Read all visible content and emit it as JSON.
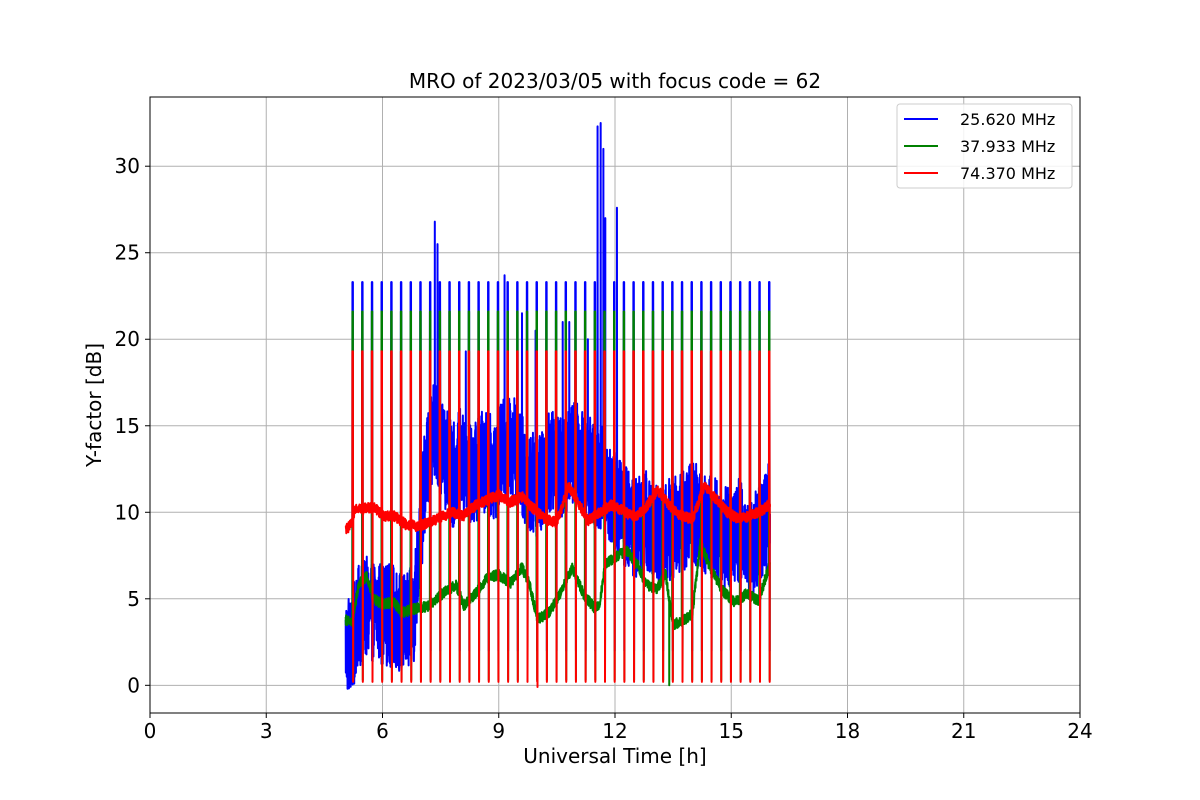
{
  "chart_data": {
    "type": "line",
    "title": "MRO of 2023/03/05 with focus code = 62",
    "xlabel": "Universal Time [h]",
    "ylabel": "Y-factor [dB]",
    "xlim": [
      0,
      24
    ],
    "ylim": [
      -1.6,
      34
    ],
    "xticks": [
      0,
      3,
      6,
      9,
      12,
      15,
      18,
      21,
      24
    ],
    "yticks": [
      0,
      5,
      10,
      15,
      20,
      25,
      30
    ],
    "grid": true,
    "legend_position": "top-right",
    "pulse": {
      "start_h": 5.23,
      "end_h": 16.0,
      "period_h": 0.25
    },
    "series": [
      {
        "name": "25.620 MHz",
        "color": "#0000ff",
        "pulse_top": 23.3,
        "pulse_bottom": 2.0,
        "baseline": [
          [
            5.05,
            2.5
          ],
          [
            5.2,
            2.3
          ],
          [
            5.3,
            3.5
          ],
          [
            5.5,
            4.5
          ],
          [
            5.8,
            4.3
          ],
          [
            6.0,
            4.2
          ],
          [
            6.3,
            4.0
          ],
          [
            6.6,
            3.5
          ],
          [
            6.8,
            4.0
          ],
          [
            6.95,
            8.0
          ],
          [
            7.1,
            12.0
          ],
          [
            7.3,
            15.0
          ],
          [
            7.5,
            14.0
          ],
          [
            7.8,
            12.0
          ],
          [
            8.0,
            13.0
          ],
          [
            8.3,
            12.0
          ],
          [
            8.6,
            13.0
          ],
          [
            8.9,
            12.5
          ],
          [
            9.1,
            13.5
          ],
          [
            9.4,
            14.0
          ],
          [
            9.7,
            12.0
          ],
          [
            10.0,
            11.5
          ],
          [
            10.3,
            13.0
          ],
          [
            10.6,
            12.5
          ],
          [
            10.9,
            13.5
          ],
          [
            11.2,
            13.0
          ],
          [
            11.5,
            12.0
          ],
          [
            11.7,
            12.0
          ],
          [
            11.9,
            11.0
          ],
          [
            12.2,
            10.0
          ],
          [
            12.5,
            9.0
          ],
          [
            12.8,
            9.5
          ],
          [
            13.1,
            8.5
          ],
          [
            13.4,
            9.0
          ],
          [
            13.7,
            9.5
          ],
          [
            14.0,
            10.0
          ],
          [
            14.3,
            9.5
          ],
          [
            14.6,
            9.0
          ],
          [
            14.9,
            8.5
          ],
          [
            15.2,
            9.0
          ],
          [
            15.5,
            8.0
          ],
          [
            15.8,
            9.0
          ],
          [
            16.0,
            10.0
          ]
        ],
        "osc_amp": 3.0,
        "spikes": [
          [
            7.35,
            26.8
          ],
          [
            7.42,
            25.5
          ],
          [
            9.15,
            23.7
          ],
          [
            11.55,
            32.3
          ],
          [
            11.63,
            32.5
          ],
          [
            11.7,
            31.0
          ],
          [
            11.75,
            27.0
          ],
          [
            12.05,
            27.6
          ],
          [
            8.15,
            19.3
          ],
          [
            10.65,
            21.0
          ],
          [
            10.82,
            21.0
          ],
          [
            11.3,
            20.0
          ],
          [
            9.6,
            21.5
          ],
          [
            9.95,
            20.5
          ]
        ],
        "dips": [
          [
            5.27,
            0.1
          ],
          [
            6.3,
            2.9
          ],
          [
            6.7,
            2.8
          ]
        ]
      },
      {
        "name": "37.933 MHz",
        "color": "#008000",
        "pulse_top": 21.6,
        "pulse_bottom": 0.3,
        "baseline": [
          [
            5.05,
            3.8
          ],
          [
            5.2,
            3.6
          ],
          [
            5.4,
            5.9
          ],
          [
            5.6,
            6.3
          ],
          [
            5.75,
            5.0
          ],
          [
            6.0,
            4.7
          ],
          [
            6.3,
            4.8
          ],
          [
            6.5,
            4.2
          ],
          [
            6.8,
            4.4
          ],
          [
            7.2,
            4.6
          ],
          [
            7.6,
            5.4
          ],
          [
            7.9,
            5.8
          ],
          [
            8.1,
            4.6
          ],
          [
            8.4,
            5.3
          ],
          [
            8.7,
            6.2
          ],
          [
            9.0,
            6.4
          ],
          [
            9.3,
            5.9
          ],
          [
            9.6,
            6.8
          ],
          [
            9.8,
            5.8
          ],
          [
            10.0,
            3.8
          ],
          [
            10.3,
            4.2
          ],
          [
            10.6,
            5.4
          ],
          [
            10.9,
            6.8
          ],
          [
            11.2,
            5.2
          ],
          [
            11.5,
            4.4
          ],
          [
            11.6,
            4.7
          ],
          [
            11.75,
            7.0
          ],
          [
            12.0,
            7.4
          ],
          [
            12.3,
            7.8
          ],
          [
            12.6,
            6.9
          ],
          [
            12.8,
            5.8
          ],
          [
            13.1,
            5.6
          ],
          [
            13.3,
            6.5
          ],
          [
            13.5,
            3.5
          ],
          [
            13.8,
            3.8
          ],
          [
            14.0,
            4.2
          ],
          [
            14.2,
            8.2
          ],
          [
            14.5,
            6.6
          ],
          [
            14.8,
            5.4
          ],
          [
            15.1,
            4.8
          ],
          [
            15.4,
            5.3
          ],
          [
            15.7,
            4.9
          ],
          [
            15.9,
            6.3
          ],
          [
            16.0,
            7.2
          ]
        ],
        "osc_amp": 0.3,
        "spikes": [],
        "dips": [
          [
            13.4,
            0.0
          ]
        ]
      },
      {
        "name": "74.370 MHz",
        "color": "#ff0000",
        "pulse_top": 19.3,
        "pulse_bottom": 0.2,
        "baseline": [
          [
            5.05,
            9.0
          ],
          [
            5.2,
            9.3
          ],
          [
            5.3,
            10.3
          ],
          [
            5.5,
            10.2
          ],
          [
            5.8,
            10.3
          ],
          [
            6.0,
            9.8
          ],
          [
            6.3,
            9.8
          ],
          [
            6.6,
            9.3
          ],
          [
            6.9,
            9.2
          ],
          [
            7.2,
            9.4
          ],
          [
            7.5,
            9.7
          ],
          [
            7.8,
            10.0
          ],
          [
            8.1,
            9.8
          ],
          [
            8.4,
            10.4
          ],
          [
            8.7,
            10.7
          ],
          [
            9.0,
            11.0
          ],
          [
            9.3,
            10.6
          ],
          [
            9.6,
            10.9
          ],
          [
            9.9,
            10.2
          ],
          [
            10.2,
            9.6
          ],
          [
            10.5,
            9.4
          ],
          [
            10.8,
            11.5
          ],
          [
            11.0,
            10.8
          ],
          [
            11.3,
            9.5
          ],
          [
            11.6,
            10.0
          ],
          [
            11.9,
            10.4
          ],
          [
            12.2,
            10.1
          ],
          [
            12.5,
            9.7
          ],
          [
            12.8,
            10.3
          ],
          [
            13.1,
            11.3
          ],
          [
            13.4,
            10.4
          ],
          [
            13.7,
            9.8
          ],
          [
            14.0,
            9.6
          ],
          [
            14.3,
            11.5
          ],
          [
            14.6,
            10.8
          ],
          [
            14.9,
            10.0
          ],
          [
            15.2,
            9.6
          ],
          [
            15.5,
            9.8
          ],
          [
            15.8,
            10.1
          ],
          [
            16.0,
            10.5
          ]
        ],
        "osc_amp": 0.3,
        "spikes": [],
        "dips": [
          [
            10.0,
            -0.1
          ]
        ]
      }
    ]
  }
}
